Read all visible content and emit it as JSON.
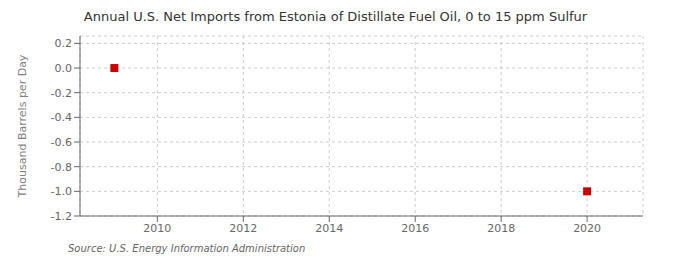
{
  "chart_data": {
    "type": "scatter",
    "title": "Annual U.S. Net Imports from Estonia of Distillate Fuel Oil, 0 to 15 ppm Sulfur",
    "ylabel": "Thousand Barrels per Day",
    "annotations": [
      "Source: U.S. Energy Information Administration"
    ],
    "x": [
      2009,
      2020
    ],
    "values": [
      0.0,
      -1.0
    ],
    "color": "#cc0000",
    "marker": "square",
    "xlim": [
      2008.2,
      2021.3
    ],
    "ylim": [
      -1.2,
      0.26
    ],
    "xticks": [
      2010,
      2012,
      2014,
      2016,
      2018,
      2020
    ],
    "yticks": [
      0.2,
      {
        "value": 0,
        "label": "0.0"
      },
      -0.2,
      -0.4,
      -0.6,
      -0.8,
      {
        "value": -1,
        "label": "-1.0"
      },
      -1.2
    ],
    "grid": true
  }
}
